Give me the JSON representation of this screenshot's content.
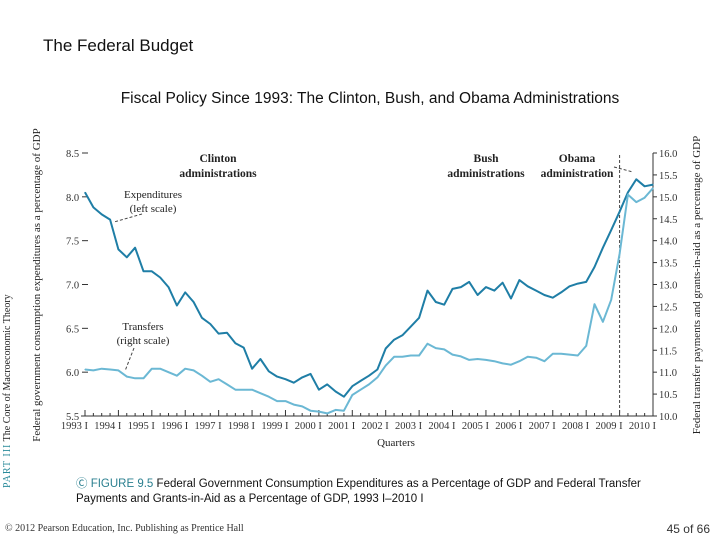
{
  "slide": {
    "title": "The Federal Budget",
    "subtitle": "Fiscal Policy Since 1993: The Clinton, Bush, and Obama Administrations",
    "side_part": "PART III",
    "side_text": "The Core of Macroeconomic Theory",
    "caption_figure": "FIGURE 9.5",
    "caption_text": "Federal Government Consumption Expenditures as a Percentage of GDP and Federal Transfer Payments and Grants-in-Aid as a Percentage of GDP, 1993 I–2010 I",
    "footer": "© 2012 Pearson Education, Inc. Publishing as Prentice Hall",
    "page": "45 of 66"
  },
  "chart_data": {
    "type": "line",
    "xlabel": "Quarters",
    "ylabel_left": "Federal government consumption expenditures as a percentage of GDP",
    "ylabel_right": "Federal transfer payments and grants-in-aid as a percentage of GDP",
    "ylim_left": [
      5.5,
      8.5
    ],
    "ylim_right": [
      10.0,
      16.0
    ],
    "yticks_left": [
      "8.5",
      "8.0",
      "7.5",
      "7.0",
      "6.5",
      "6.0",
      "5.5"
    ],
    "yticks_right": [
      "16.0",
      "15.5",
      "15.0",
      "14.5",
      "14.0",
      "13.5",
      "13.0",
      "12.5",
      "12.0",
      "11.5",
      "11.0",
      "10.5",
      "10.0"
    ],
    "xtick_labels": [
      "1993 I",
      "1994 I",
      "1995 I",
      "1996 I",
      "1997 I",
      "1998 I",
      "1999 I",
      "2000 I",
      "2001 I",
      "2002 I",
      "2003 I",
      "2004 I",
      "2005 I",
      "2006 I",
      "2007 I",
      "2008 I",
      "2009 I",
      "2010 I"
    ],
    "x_start": "1993 I",
    "x_end": "2010 I",
    "annotations": {
      "clinton": [
        "Clinton",
        "administrations"
      ],
      "bush": [
        "Bush",
        "administrations"
      ],
      "obama": [
        "Obama",
        "administration"
      ],
      "obama_start": "2009 I"
    },
    "colors": {
      "expenditures": "#1f7ea6",
      "transfers": "#6bb8d4"
    },
    "series": [
      {
        "name": "Expenditures (left scale)",
        "label": [
          "Expenditures",
          "(left scale)"
        ],
        "axis": "left",
        "values": [
          8.05,
          7.88,
          7.8,
          7.74,
          7.4,
          7.31,
          7.42,
          7.15,
          7.15,
          7.08,
          6.97,
          6.76,
          6.91,
          6.8,
          6.62,
          6.55,
          6.44,
          6.45,
          6.33,
          6.28,
          6.04,
          6.15,
          6.01,
          5.95,
          5.92,
          5.88,
          5.94,
          5.98,
          5.8,
          5.86,
          5.78,
          5.72,
          5.84,
          5.9,
          5.96,
          6.03,
          6.27,
          6.37,
          6.42,
          6.52,
          6.62,
          6.93,
          6.8,
          6.77,
          6.95,
          6.97,
          7.03,
          6.88,
          6.97,
          6.93,
          7.02,
          6.84,
          7.05,
          6.98,
          6.93,
          6.88,
          6.85,
          6.91,
          6.98,
          7.01,
          7.03,
          7.2,
          7.42,
          7.62,
          7.83,
          8.05,
          8.2,
          8.12,
          8.14
        ]
      },
      {
        "name": "Transfers (right scale)",
        "label": [
          "Transfers",
          "(right scale)"
        ],
        "axis": "right",
        "values": [
          11.06,
          11.04,
          11.08,
          11.06,
          11.04,
          10.9,
          10.86,
          10.86,
          11.08,
          11.08,
          11.0,
          10.92,
          11.08,
          11.04,
          10.92,
          10.78,
          10.84,
          10.72,
          10.6,
          10.6,
          10.6,
          10.52,
          10.44,
          10.34,
          10.34,
          10.26,
          10.22,
          10.12,
          10.1,
          10.06,
          10.14,
          10.12,
          10.48,
          10.6,
          10.72,
          10.88,
          11.15,
          11.35,
          11.35,
          11.38,
          11.38,
          11.65,
          11.55,
          11.52,
          11.4,
          11.36,
          11.28,
          11.3,
          11.28,
          11.25,
          11.2,
          11.17,
          11.25,
          11.35,
          11.33,
          11.25,
          11.42,
          11.42,
          11.4,
          11.38,
          11.6,
          12.55,
          12.15,
          12.65,
          13.7,
          15.05,
          14.88,
          14.98,
          15.2
        ]
      }
    ]
  }
}
